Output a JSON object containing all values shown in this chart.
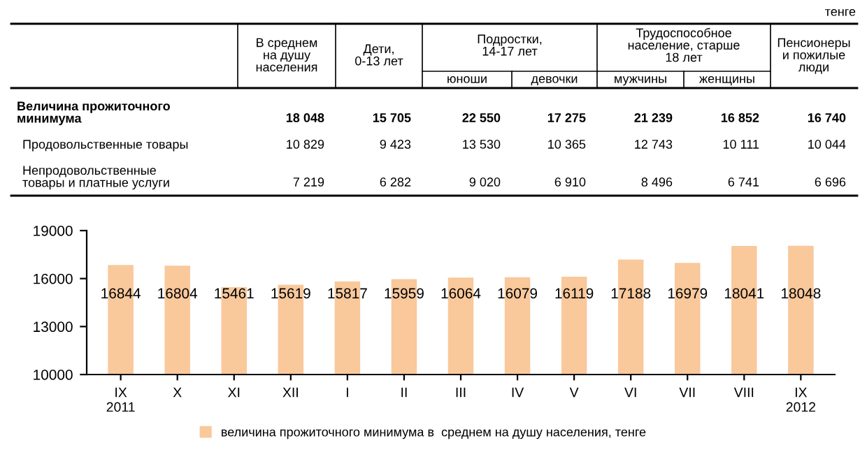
{
  "chart_data": [
    {
      "type": "other",
      "annotations": [
        "тенге",
        "Подростки,\n14-17 лет",
        "Трудоспособное\nнаселение, старше\n18 лет"
      ],
      "categories": [
        "В среднем\nна душу\nнаселения",
        "Дети,\n0-13 лет",
        "юноши",
        "девочки",
        "мужчины",
        "женщины",
        "Пенсионеры\nи пожилые\nлюди"
      ],
      "y_categories": [
        "Величина прожиточного\nминимума",
        "Продовольственные товары",
        "Непродовольственные\nтовары и платные услуги"
      ],
      "cell_labels": [
        [
          "18 048",
          "15 705",
          "22 550",
          "17 275",
          "21 239",
          "16 852",
          "16 740"
        ],
        [
          "10 829",
          "9 423",
          "13 530",
          "10 365",
          "12 743",
          "10 111",
          "10 044"
        ],
        [
          "7 219",
          "6 282",
          "9 020",
          "6 910",
          "8 496",
          "6 741",
          "6 696"
        ]
      ]
    },
    {
      "type": "bar",
      "categories": [
        "IX\n2011",
        "X",
        "XI",
        "XII",
        "I",
        "II",
        "III",
        "IV",
        "V",
        "VI",
        "VII",
        "VIII",
        "IX\n2012"
      ],
      "series": [
        {
          "name": "величина прожиточного минимума в  среднем на душу населения, тенге",
          "color": "#f9c89b",
          "values": [
            16844,
            16804,
            15461,
            15619,
            15817,
            15959,
            16064,
            16079,
            16119,
            17188,
            16979,
            18041,
            18048
          ]
        }
      ],
      "ylim": [
        10000,
        19000
      ],
      "yticks": [
        10000,
        13000,
        16000,
        19000
      ],
      "data_labels": true,
      "grid": false,
      "legend": "bottom"
    }
  ]
}
